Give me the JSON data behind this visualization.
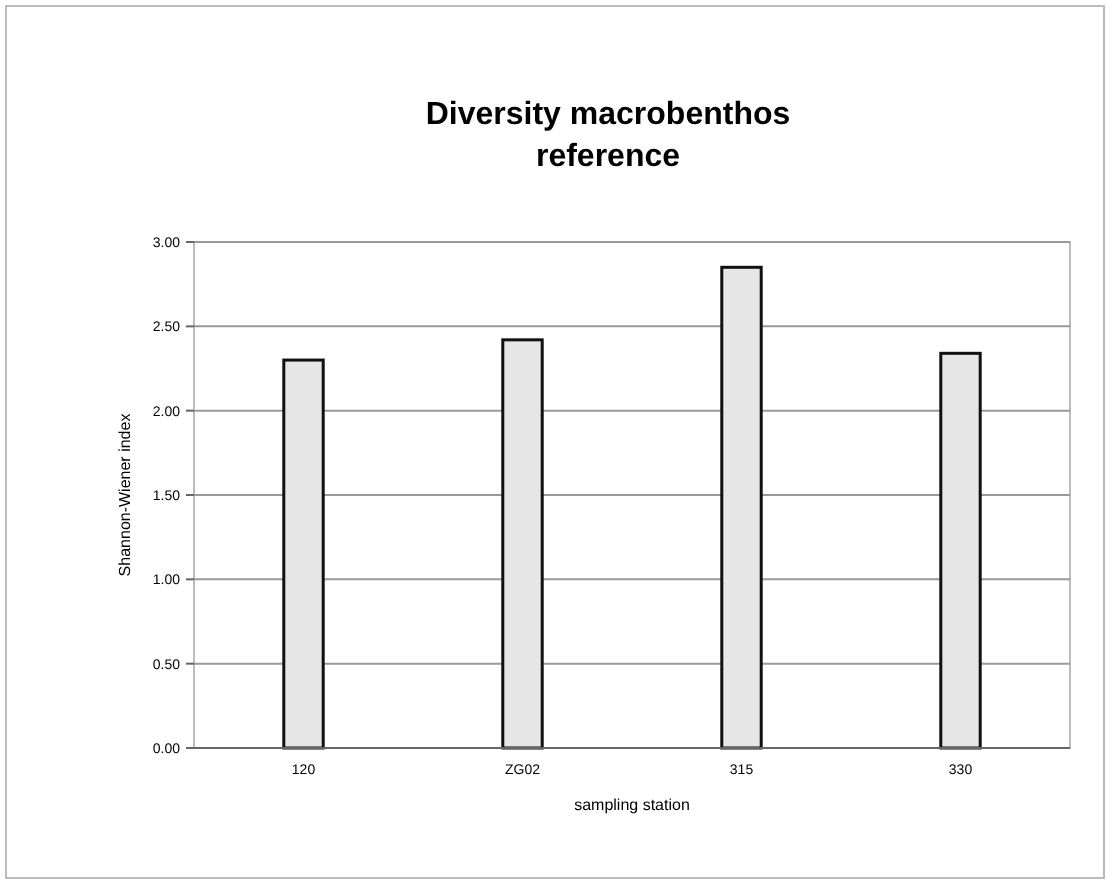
{
  "chart_data": {
    "type": "bar",
    "title": "Diversity macrobenthos\nreference",
    "xlabel": "sampling station",
    "ylabel": "Shannon-Wiener index",
    "categories": [
      "120",
      "ZG02",
      "315",
      "330"
    ],
    "values": [
      2.3,
      2.42,
      2.85,
      2.34
    ],
    "color": "#e6e6e6",
    "ylim": [
      0,
      3
    ],
    "yticks": [
      {
        "value": 0,
        "label": "0.00"
      },
      {
        "value": 0.5,
        "label": "0.50"
      },
      {
        "value": 1,
        "label": "1.00"
      },
      {
        "value": 1.5,
        "label": "1.50"
      },
      {
        "value": 2,
        "label": "2.00"
      },
      {
        "value": 2.5,
        "label": "2.50"
      },
      {
        "value": 3,
        "label": "3.00"
      }
    ],
    "grid": "y"
  }
}
